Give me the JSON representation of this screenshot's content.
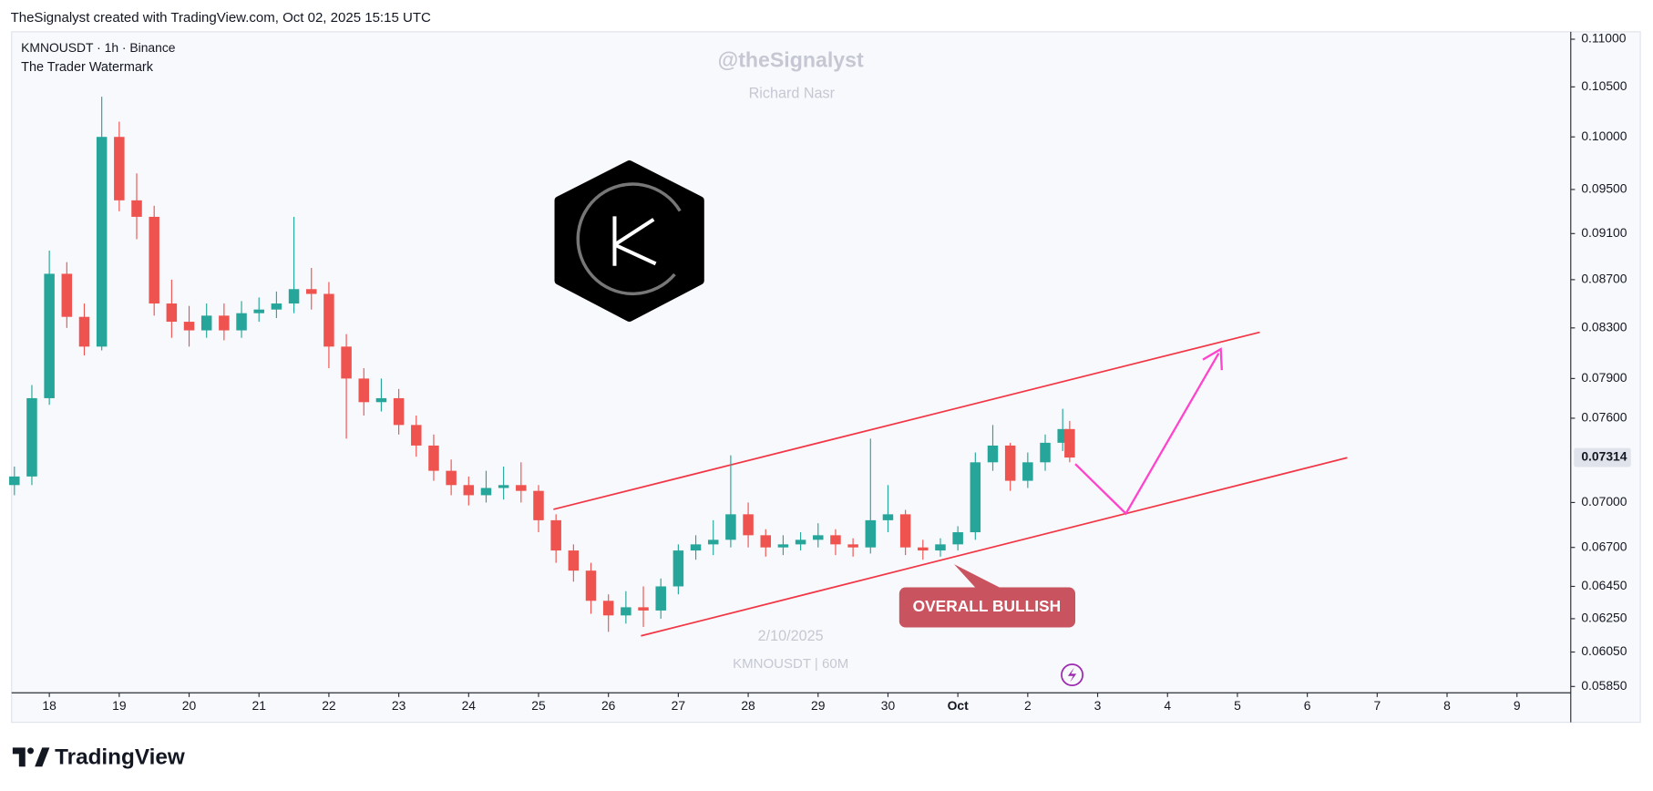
{
  "header": "TheSignalyst created with TradingView.com, Oct 02, 2025 15:15 UTC",
  "brand": "TradingView",
  "chart_data": {
    "type": "candlestick",
    "title": "KMNOUSDT · 1h · Binance",
    "subtitle": "The Trader Watermark",
    "watermark": [
      "@theSignalyst",
      "Richard Nasr",
      "2/10/2025",
      "KMNOUSDT | 60M"
    ],
    "annotation": "OVERALL BULLISH",
    "up_color": "#26a69a",
    "down_color": "#ef5350",
    "log_scale": true,
    "grid": false,
    "x": [
      17.5,
      17.75,
      18,
      18.25,
      18.5,
      18.75,
      19,
      19.25,
      19.5,
      19.75,
      20,
      20.25,
      20.5,
      20.75,
      21,
      21.25,
      21.5,
      21.75,
      22,
      22.25,
      22.5,
      22.75,
      23,
      23.25,
      23.5,
      23.75,
      24,
      24.25,
      24.5,
      24.75,
      25,
      25.25,
      25.5,
      25.75,
      26,
      26.25,
      26.5,
      26.75,
      27,
      27.25,
      27.5,
      27.75,
      28,
      28.25,
      28.5,
      28.75,
      29,
      29.25,
      29.5,
      29.75,
      30,
      30.25,
      30.5,
      30.75,
      31,
      31.25,
      31.5,
      31.75,
      32,
      32.25,
      32.5,
      32.6
    ],
    "open": [
      0.0712,
      0.0718,
      0.0775,
      0.0875,
      0.0839,
      0.0815,
      0.1,
      0.094,
      0.0925,
      0.085,
      0.0835,
      0.0828,
      0.084,
      0.0828,
      0.0842,
      0.0845,
      0.085,
      0.0862,
      0.0858,
      0.0815,
      0.079,
      0.0772,
      0.0775,
      0.0755,
      0.074,
      0.0722,
      0.0712,
      0.0705,
      0.071,
      0.0712,
      0.0708,
      0.0688,
      0.0668,
      0.0655,
      0.0636,
      0.0627,
      0.0632,
      0.063,
      0.0645,
      0.0668,
      0.0672,
      0.0675,
      0.0692,
      0.0678,
      0.067,
      0.0672,
      0.0675,
      0.0678,
      0.0672,
      0.067,
      0.0688,
      0.0692,
      0.067,
      0.0668,
      0.0672,
      0.068,
      0.0728,
      0.074,
      0.0715,
      0.0728,
      0.0742,
      0.0752
    ],
    "high": [
      0.0725,
      0.0785,
      0.0895,
      0.0885,
      0.085,
      0.104,
      0.1015,
      0.0965,
      0.0935,
      0.087,
      0.0848,
      0.085,
      0.085,
      0.0852,
      0.0855,
      0.086,
      0.0925,
      0.088,
      0.0868,
      0.0825,
      0.0798,
      0.079,
      0.0782,
      0.0762,
      0.0748,
      0.073,
      0.0718,
      0.0722,
      0.0725,
      0.0728,
      0.0712,
      0.0692,
      0.0672,
      0.066,
      0.064,
      0.0642,
      0.0645,
      0.065,
      0.0672,
      0.0678,
      0.0688,
      0.0733,
      0.07,
      0.0682,
      0.0678,
      0.068,
      0.0686,
      0.0682,
      0.0676,
      0.0745,
      0.0712,
      0.0695,
      0.0675,
      0.0676,
      0.0684,
      0.0735,
      0.0755,
      0.0742,
      0.0735,
      0.0748,
      0.0767,
      0.0758
    ],
    "low": [
      0.0705,
      0.0712,
      0.077,
      0.083,
      0.0808,
      0.0812,
      0.093,
      0.0905,
      0.084,
      0.0822,
      0.0815,
      0.0822,
      0.082,
      0.0822,
      0.0835,
      0.0838,
      0.0842,
      0.0845,
      0.0798,
      0.0745,
      0.0762,
      0.0765,
      0.0748,
      0.0732,
      0.0715,
      0.0705,
      0.0698,
      0.07,
      0.0702,
      0.07,
      0.068,
      0.066,
      0.0648,
      0.0628,
      0.0617,
      0.0622,
      0.062,
      0.0625,
      0.064,
      0.0662,
      0.0665,
      0.067,
      0.067,
      0.0664,
      0.0665,
      0.0668,
      0.067,
      0.0665,
      0.0664,
      0.0666,
      0.068,
      0.0665,
      0.0662,
      0.0664,
      0.0668,
      0.0675,
      0.0722,
      0.0708,
      0.071,
      0.0722,
      0.0736,
      0.0728
    ],
    "close": [
      0.0718,
      0.0775,
      0.0875,
      0.0839,
      0.0815,
      0.1,
      0.094,
      0.0925,
      0.085,
      0.0835,
      0.0828,
      0.084,
      0.0828,
      0.0842,
      0.0845,
      0.085,
      0.0862,
      0.0858,
      0.0815,
      0.079,
      0.0772,
      0.0775,
      0.0755,
      0.074,
      0.0722,
      0.0712,
      0.0705,
      0.071,
      0.0712,
      0.0708,
      0.0688,
      0.0668,
      0.0655,
      0.0636,
      0.0627,
      0.0632,
      0.063,
      0.0645,
      0.0668,
      0.0672,
      0.0675,
      0.0692,
      0.0678,
      0.067,
      0.0672,
      0.0675,
      0.0678,
      0.0672,
      0.067,
      0.0688,
      0.0692,
      0.067,
      0.0668,
      0.0672,
      0.068,
      0.0728,
      0.074,
      0.0715,
      0.0728,
      0.0742,
      0.0752,
      0.07314
    ],
    "last_price": 0.07314,
    "xlim": [
      17.46,
      39.77
    ],
    "xticks": [
      18,
      19,
      20,
      21,
      22,
      23,
      24,
      25,
      26,
      27,
      28,
      29,
      30,
      {
        "value": 31,
        "label": "Oct"
      },
      {
        "value": 32,
        "label": "2"
      },
      {
        "value": 33,
        "label": "3"
      },
      {
        "value": 34,
        "label": "4"
      },
      {
        "value": 35,
        "label": "5"
      },
      {
        "value": 36,
        "label": "6"
      },
      {
        "value": 37,
        "label": "7"
      },
      {
        "value": 38,
        "label": "8"
      },
      {
        "value": 39,
        "label": "9"
      }
    ],
    "ylim": [
      0.05826,
      0.1108
    ],
    "yticks": [
      {
        "value": 0.11,
        "label": "0.11000"
      },
      {
        "value": 0.105,
        "label": "0.10500"
      },
      {
        "value": 0.1,
        "label": "0.10000"
      },
      {
        "value": 0.095,
        "label": "0.09500"
      },
      {
        "value": 0.091,
        "label": "0.09100"
      },
      {
        "value": 0.087,
        "label": "0.08700"
      },
      {
        "value": 0.083,
        "label": "0.08300"
      },
      {
        "value": 0.079,
        "label": "0.07900"
      },
      {
        "value": 0.076,
        "label": "0.07600"
      },
      {
        "value": 0.07,
        "label": "0.07000"
      },
      {
        "value": 0.067,
        "label": "0.06700"
      },
      {
        "value": 0.0645,
        "label": "0.06450"
      },
      {
        "value": 0.0625,
        "label": "0.06250"
      },
      {
        "value": 0.0605,
        "label": "0.06050"
      },
      {
        "value": 0.0585,
        "label": "0.05850"
      }
    ]
  }
}
